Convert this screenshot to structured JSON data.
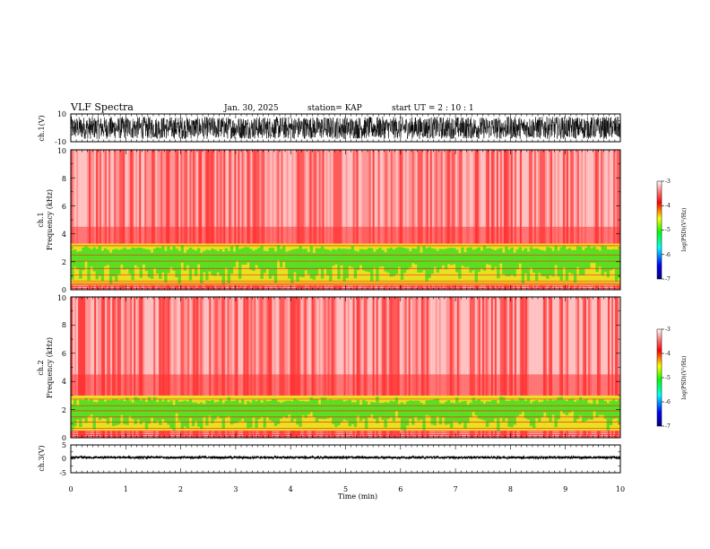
{
  "header": {
    "title": "VLF Spectra",
    "date": "Jan. 30, 2025",
    "station": "station= KAP",
    "start": "start  UT  =   2  : 10 : 1"
  },
  "colors": {
    "trace": "#000000",
    "background_noise": "#ff2a2a",
    "band_green": "#44dd22",
    "band_yellow": "#e8e020",
    "colormap": [
      "#00007f",
      "#0000ff",
      "#00ffff",
      "#00ff00",
      "#ffff00",
      "#ff0000",
      "#ff8080",
      "#ffffff"
    ]
  },
  "chart_data": [
    {
      "type": "line",
      "panel": "ch1-waveform",
      "ylabel": "ch.1(V)",
      "ylim": [
        -10,
        10
      ],
      "yticks": [
        "10",
        "-10"
      ],
      "description_values": {
        "amplitude_range": [
          -8,
          8
        ]
      }
    },
    {
      "type": "heatmap",
      "panel": "ch1-spectrogram",
      "ylabel": "ch.1\nFrequency (kHz)",
      "ylabel_lines": [
        "ch.1",
        "Frequency (kHz)"
      ],
      "ylim": [
        0,
        10
      ],
      "yticks": [
        "0",
        "2",
        "4",
        "6",
        "8",
        "10"
      ],
      "band_khz": [
        0.3,
        3.3
      ],
      "colorbar": {
        "label": "log(PSD)(V²/Hz)",
        "range": [
          -7,
          -3
        ],
        "ticks": [
          "-3",
          "-4",
          "-5",
          "-6",
          "-7"
        ]
      }
    },
    {
      "type": "heatmap",
      "panel": "ch2-spectrogram",
      "ylabel": "ch.2\nFrequency (kHz)",
      "ylabel_lines": [
        "ch.2",
        "Frequency (kHz)"
      ],
      "ylim": [
        0,
        10
      ],
      "yticks": [
        "0",
        "2",
        "4",
        "6",
        "8",
        "10"
      ],
      "band_khz": [
        0.5,
        3.0
      ],
      "colorbar": {
        "label": "log(PSD)(V²/Hz)",
        "range": [
          -7,
          -3
        ],
        "ticks": [
          "-3",
          "-4",
          "-5",
          "-6",
          "-7"
        ]
      }
    },
    {
      "type": "line",
      "panel": "ch3-waveform",
      "ylabel": "ch.3(V)",
      "ylim": [
        -5,
        5
      ],
      "yticks": [
        "5",
        "0",
        "-5"
      ],
      "description_values": {
        "level_range": [
          0.1,
          0.9
        ]
      }
    }
  ],
  "xaxis": {
    "xlabel": "Time  (min)",
    "xlim": [
      0,
      10
    ],
    "xticks": [
      "0",
      "1",
      "2",
      "3",
      "4",
      "5",
      "6",
      "7",
      "8",
      "9",
      "10"
    ]
  }
}
